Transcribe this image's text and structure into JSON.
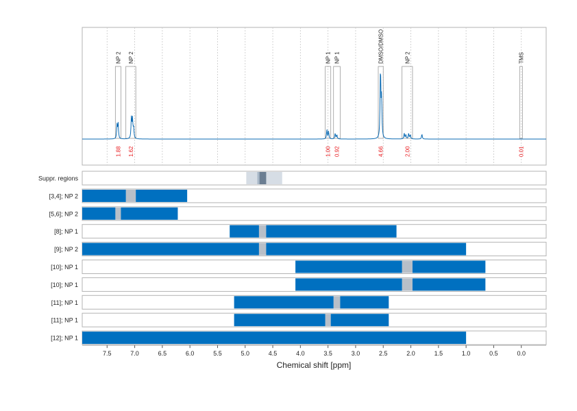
{
  "chart_data": {
    "type": "nmr-spectrum-with-range-bars",
    "xlabel": "Chemical shift [ppm]",
    "x_reversed": true,
    "xlim": [
      7.95,
      -0.45
    ],
    "x_ticks": [
      "7.5",
      "7.0",
      "6.5",
      "6.0",
      "5.5",
      "5.0",
      "4.5",
      "4.0",
      "3.5",
      "3.0",
      "2.5",
      "2.0",
      "1.5",
      "1.0",
      "0.5",
      "0.0"
    ],
    "colors": {
      "spectrum": "#0a6ab3",
      "bar": "#0070c0",
      "gap": "#b8bfc8",
      "integral": "#e8191d",
      "suppr_light": "#d6dde5",
      "suppr_mid": "#a9b8c8",
      "suppr_dark": "#6b7e92"
    },
    "peaks": [
      {
        "label": "NP 2",
        "x_from": 7.35,
        "x_to": 7.25,
        "integral": "1.88"
      },
      {
        "label": "NP 2",
        "x_from": 7.16,
        "x_to": 6.98,
        "integral": "1.62"
      },
      {
        "label": "NP 1",
        "x_from": 3.55,
        "x_to": 3.45,
        "integral": "1.00"
      },
      {
        "label": "NP 1",
        "x_from": 3.4,
        "x_to": 3.28,
        "integral": "0.92"
      },
      {
        "label": "DMSO/DMSO",
        "x_from": 2.59,
        "x_to": 2.5,
        "integral": "4.66"
      },
      {
        "label": "NP 2",
        "x_from": 2.16,
        "x_to": 1.97,
        "integral": "2.00"
      },
      {
        "label": "TMS",
        "x_from": 0.03,
        "x_to": -0.02,
        "integral": "0.01"
      }
    ],
    "spectrum_peaks": [
      {
        "x": 7.32,
        "h": 0.2
      },
      {
        "x": 7.3,
        "h": 0.22
      },
      {
        "x": 7.06,
        "h": 0.3
      },
      {
        "x": 7.04,
        "h": 0.27
      },
      {
        "x": 7.02,
        "h": 0.15
      },
      {
        "x": 3.52,
        "h": 0.13
      },
      {
        "x": 3.49,
        "h": 0.11
      },
      {
        "x": 3.37,
        "h": 0.08
      },
      {
        "x": 3.34,
        "h": 0.06
      },
      {
        "x": 2.55,
        "h": 1.0
      },
      {
        "x": 2.53,
        "h": 0.55
      },
      {
        "x": 2.12,
        "h": 0.08
      },
      {
        "x": 2.09,
        "h": 0.06
      },
      {
        "x": 2.04,
        "h": 0.08
      },
      {
        "x": 2.01,
        "h": 0.06
      },
      {
        "x": 1.8,
        "h": 0.07
      }
    ],
    "rows": [
      {
        "label": "Suppr. regions",
        "kind": "suppression",
        "light": [
          4.98,
          4.33
        ],
        "mid": [
          4.78,
          4.62
        ],
        "dark": [
          4.74,
          4.62
        ]
      },
      {
        "label": "[3,4]; NP 2",
        "segments": [
          [
            7.95,
            7.16
          ],
          [
            6.98,
            6.05
          ]
        ]
      },
      {
        "label": "[5,6]; NP 2",
        "segments": [
          [
            7.95,
            7.35
          ],
          [
            7.25,
            6.22
          ]
        ]
      },
      {
        "label": "[8]; NP 1",
        "segments": [
          [
            5.28,
            4.75
          ],
          [
            4.62,
            2.26
          ]
        ]
      },
      {
        "label": "[9]; NP 2",
        "segments": [
          [
            7.95,
            4.75
          ],
          [
            4.62,
            1.0
          ]
        ]
      },
      {
        "label": "[10]; NP 1",
        "segments": [
          [
            4.09,
            2.16
          ],
          [
            1.97,
            0.65
          ]
        ]
      },
      {
        "label": "[10]; NP 1",
        "segments": [
          [
            4.09,
            2.16
          ],
          [
            1.97,
            0.65
          ]
        ]
      },
      {
        "label": "[11]; NP 1",
        "segments": [
          [
            5.2,
            3.4
          ],
          [
            3.28,
            2.4
          ]
        ]
      },
      {
        "label": "[11]; NP 1",
        "segments": [
          [
            5.2,
            3.55
          ],
          [
            3.45,
            2.4
          ]
        ]
      },
      {
        "label": "[12]; NP 1",
        "segments": [
          [
            7.95,
            1.0
          ]
        ]
      }
    ]
  }
}
